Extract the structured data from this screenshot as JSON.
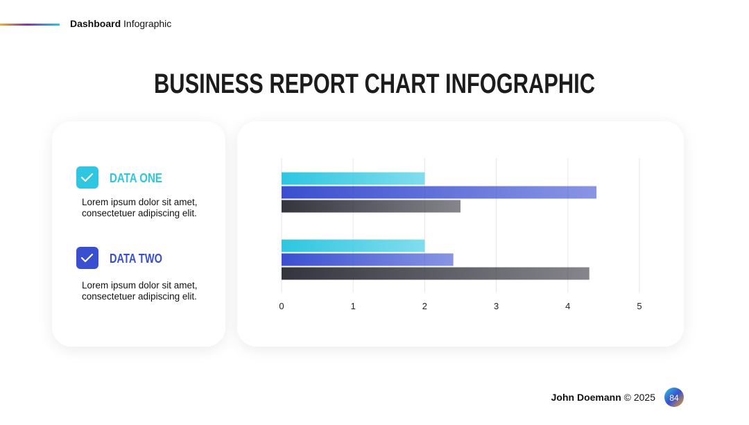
{
  "header": {
    "bold": "Dashboard",
    "text": "Infographic"
  },
  "title": "BUSINESS REPORT CHART INFOGRAPHIC",
  "items": [
    {
      "title": "DATA ONE",
      "color": "#2ec6e0",
      "description": [
        "Lorem ipsum dolor sit amet,",
        "consectetuer adipiscing elit."
      ]
    },
    {
      "title": "DATA TWO",
      "color": "#3a4fd0",
      "description": [
        "Lorem ipsum dolor sit amet,",
        "consectetuer adipiscing elit."
      ]
    }
  ],
  "chart_data": {
    "type": "hbar",
    "categories": [
      null,
      null
    ],
    "series": [
      {
        "color": "#2ec6e0",
        "values": [
          2,
          2
        ]
      },
      {
        "color": "#3a4fd0",
        "values": [
          4.4,
          2.4
        ]
      },
      {
        "color": "#34343e",
        "values": [
          2.5,
          4.3
        ]
      }
    ],
    "xlim": [
      0,
      5
    ],
    "xticks": [
      0,
      1,
      2,
      3,
      4,
      5
    ],
    "grid": true
  },
  "footer": {
    "author": "John Doemann",
    "copyright": "© 2025",
    "page": "84"
  }
}
